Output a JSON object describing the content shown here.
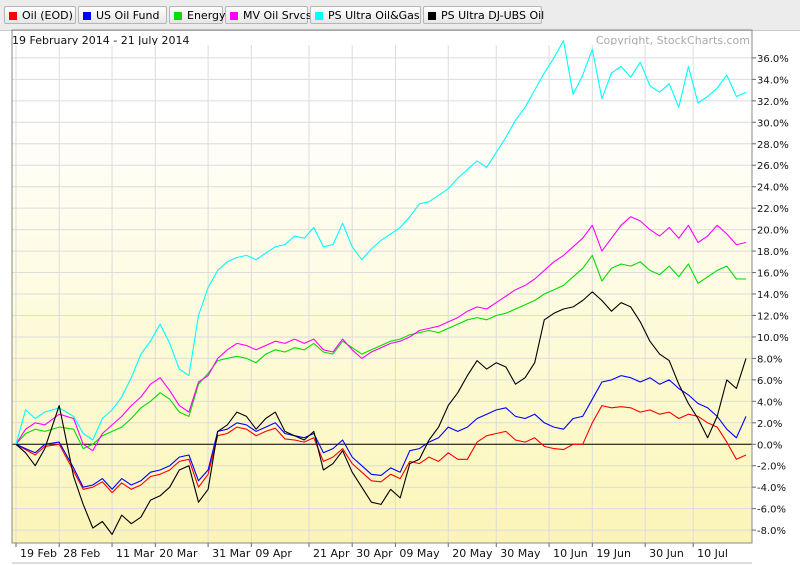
{
  "legend": [
    {
      "label": "Oil (EOD)",
      "color": "#ff0000"
    },
    {
      "label": "US Oil Fund",
      "color": "#0000ff"
    },
    {
      "label": "Energy",
      "color": "#00dd00"
    },
    {
      "label": "MV Oil Srvcs",
      "color": "#ff00ff"
    },
    {
      "label": "PS Ultra Oil&Gas",
      "color": "#00ffff"
    },
    {
      "label": "PS Ultra DJ-UBS Oil",
      "color": "#000000"
    }
  ],
  "header": {
    "date_range": "19 February 2014 - 21 July 2014",
    "copyright": "Copyright, StockCharts.com"
  },
  "chart_data": {
    "type": "line",
    "ylim": [
      -9.2,
      38.6
    ],
    "grid": true,
    "legend_position": "top",
    "y_ticks": [
      "-8.0%",
      "-6.0%",
      "-4.0%",
      "-2.0%",
      "0.0%",
      "2.0%",
      "4.0%",
      "6.0%",
      "8.0%",
      "10.0%",
      "12.0%",
      "14.0%",
      "16.0%",
      "18.0%",
      "20.0%",
      "22.0%",
      "24.0%",
      "26.0%",
      "28.0%",
      "30.0%",
      "32.0%",
      "34.0%",
      "36.0%"
    ],
    "y_tick_values": [
      -8,
      -6,
      -4,
      -2,
      0,
      2,
      4,
      6,
      8,
      10,
      12,
      14,
      16,
      18,
      20,
      22,
      24,
      26,
      28,
      30,
      32,
      34,
      36
    ],
    "x_ticks": [
      "19 Feb",
      "28 Feb",
      "11 Mar",
      "20 Mar",
      "31 Mar",
      "09 Apr",
      "21 Apr",
      "30 Apr",
      "09 May",
      "20 May",
      "30 May",
      "10 Jun",
      "19 Jun",
      "30 Jun",
      "10 Jul"
    ],
    "x_tick_days": [
      0,
      9,
      20,
      29,
      40,
      49,
      61,
      70,
      79,
      90,
      100,
      111,
      120,
      131,
      141
    ],
    "x_end_day": 152,
    "series": [
      {
        "name": "Oil (EOD)",
        "color": "#ff0000",
        "x": [
          0,
          2,
          4,
          6,
          9,
          12,
          14,
          16,
          18,
          20,
          22,
          24,
          26,
          28,
          30,
          32,
          34,
          36,
          38,
          40,
          42,
          44,
          46,
          48,
          50,
          52,
          54,
          56,
          58,
          60,
          62,
          64,
          66,
          68,
          70,
          72,
          74,
          76,
          78,
          80,
          82,
          84,
          86,
          88,
          90,
          92,
          94,
          96,
          98,
          100,
          102,
          104,
          106,
          108,
          110,
          112,
          114,
          116,
          118,
          120,
          122,
          124,
          126,
          128,
          130,
          132,
          134,
          136,
          138,
          140,
          142,
          144,
          146,
          148,
          150,
          152
        ],
        "y": [
          0,
          -0.5,
          -1,
          -0.2,
          0,
          -2.5,
          -4.2,
          -4,
          -3.5,
          -4.5,
          -3.6,
          -4.2,
          -3.8,
          -3,
          -2.8,
          -2.4,
          -1.6,
          -1.4,
          -4,
          -2.8,
          0.8,
          1,
          1.6,
          1.4,
          0.8,
          1.2,
          1.5,
          0.5,
          0.4,
          0.2,
          0.6,
          -1.6,
          -1.2,
          -0.4,
          -1.8,
          -2.6,
          -3.4,
          -3.5,
          -2.8,
          -3.2,
          -1.6,
          -1.8,
          -1.2,
          -1.6,
          -0.8,
          -1.4,
          -1.4,
          0.2,
          0.8,
          1,
          1.2,
          0.4,
          0.2,
          0.6,
          -0.2,
          -0.4,
          -0.5,
          0,
          0,
          2,
          3.6,
          3.4,
          3.5,
          3.4,
          3.0,
          3.2,
          2.8,
          3.0,
          2.4,
          2.8,
          2.6,
          2.0,
          1.6,
          0.2,
          -1.4,
          -1.0
        ],
        "values_note": "approximate percent change"
      },
      {
        "name": "US Oil Fund",
        "color": "#0000ff",
        "x": [
          0,
          2,
          4,
          6,
          9,
          12,
          14,
          16,
          18,
          20,
          22,
          24,
          26,
          28,
          30,
          32,
          34,
          36,
          38,
          40,
          42,
          44,
          46,
          48,
          50,
          52,
          54,
          56,
          58,
          60,
          62,
          64,
          66,
          68,
          70,
          72,
          74,
          76,
          78,
          80,
          82,
          84,
          86,
          88,
          90,
          92,
          94,
          96,
          98,
          100,
          102,
          104,
          106,
          108,
          110,
          112,
          114,
          116,
          118,
          120,
          122,
          124,
          126,
          128,
          130,
          132,
          134,
          136,
          138,
          140,
          142,
          144,
          146,
          148,
          150,
          152
        ],
        "y": [
          0,
          -0.4,
          -0.8,
          0,
          0.2,
          -2.2,
          -4,
          -3.8,
          -3.2,
          -4.2,
          -3.2,
          -3.8,
          -3.4,
          -2.6,
          -2.4,
          -2,
          -1.2,
          -1,
          -3.4,
          -2.4,
          1.2,
          1.4,
          2,
          1.8,
          1.2,
          1.6,
          2,
          1,
          0.8,
          0.6,
          1,
          -0.8,
          -0.4,
          0.4,
          -1.2,
          -2,
          -2.8,
          -2.9,
          -2.2,
          -2.6,
          -0.6,
          -0.4,
          0.2,
          0.6,
          1.6,
          1.2,
          1.6,
          2.4,
          2.8,
          3.2,
          3.4,
          2.6,
          2.4,
          2.8,
          2,
          1.6,
          1.4,
          2.4,
          2.6,
          4.2,
          5.8,
          6,
          6.4,
          6.2,
          5.8,
          6.2,
          5.6,
          6,
          5.2,
          4.6,
          3.8,
          3.4,
          2.6,
          1.4,
          0.6,
          2.6
        ],
        "values_note": "approximate percent change"
      },
      {
        "name": "Energy",
        "color": "#00dd00",
        "x": [
          0,
          2,
          4,
          6,
          9,
          12,
          14,
          16,
          18,
          20,
          22,
          24,
          26,
          28,
          30,
          32,
          34,
          36,
          38,
          40,
          42,
          44,
          46,
          48,
          50,
          52,
          54,
          56,
          58,
          60,
          62,
          64,
          66,
          68,
          70,
          72,
          74,
          76,
          78,
          80,
          82,
          84,
          86,
          88,
          90,
          92,
          94,
          96,
          98,
          100,
          102,
          104,
          106,
          108,
          110,
          112,
          114,
          116,
          118,
          120,
          122,
          124,
          126,
          128,
          130,
          132,
          134,
          136,
          138,
          140,
          142,
          144,
          146,
          148,
          150,
          152
        ],
        "y": [
          0,
          1,
          1.4,
          1.2,
          1.6,
          1.4,
          -0.4,
          0,
          0.8,
          1.2,
          1.6,
          2.4,
          3.4,
          4,
          4.8,
          4.2,
          3,
          2.6,
          5.6,
          6.6,
          7.8,
          8,
          8.2,
          8,
          7.6,
          8.4,
          8.8,
          8.6,
          9,
          8.8,
          9.4,
          8.6,
          8.4,
          9.6,
          9,
          8.4,
          8.8,
          9.2,
          9.6,
          9.8,
          10.2,
          10.4,
          10.6,
          10.4,
          10.8,
          11.2,
          11.6,
          11.8,
          11.6,
          12,
          12.2,
          12.6,
          13,
          13.4,
          14,
          14.4,
          14.8,
          15.6,
          16.4,
          17.6,
          15.2,
          16.4,
          16.8,
          16.6,
          17,
          16.2,
          15.8,
          16.6,
          15.6,
          16.8,
          15,
          15.6,
          16.2,
          16.6,
          15.4,
          15.4
        ],
        "values_note": "approximate percent change"
      },
      {
        "name": "MV Oil Srvcs",
        "color": "#ff00ff",
        "x": [
          0,
          2,
          4,
          6,
          9,
          12,
          14,
          16,
          18,
          20,
          22,
          24,
          26,
          28,
          30,
          32,
          34,
          36,
          38,
          40,
          42,
          44,
          46,
          48,
          50,
          52,
          54,
          56,
          58,
          60,
          62,
          64,
          66,
          68,
          70,
          72,
          74,
          76,
          78,
          80,
          82,
          84,
          86,
          88,
          90,
          92,
          94,
          96,
          98,
          100,
          102,
          104,
          106,
          108,
          110,
          112,
          114,
          116,
          118,
          120,
          122,
          124,
          126,
          128,
          130,
          132,
          134,
          136,
          138,
          140,
          142,
          144,
          146,
          148,
          150,
          152
        ],
        "y": [
          0,
          1.4,
          2,
          1.8,
          2.8,
          2.4,
          0,
          -0.6,
          1,
          1.8,
          2.6,
          3.6,
          4.4,
          5.6,
          6.2,
          5,
          3.6,
          3,
          5.8,
          6.4,
          8,
          8.8,
          9.4,
          9.2,
          8.8,
          9.2,
          9.6,
          9.4,
          9.8,
          9.4,
          9.8,
          8.8,
          8.6,
          9.8,
          8.8,
          8,
          8.6,
          9,
          9.4,
          9.6,
          10,
          10.6,
          10.8,
          11,
          11.4,
          11.8,
          12.4,
          12.8,
          12.6,
          13.2,
          13.8,
          14.4,
          14.8,
          15.4,
          16.2,
          17,
          17.6,
          18.4,
          19.2,
          20.4,
          18,
          19.2,
          20.4,
          21.2,
          20.8,
          20,
          19.4,
          20.2,
          19.2,
          20.4,
          18.8,
          19.4,
          20.4,
          19.6,
          18.6,
          18.8
        ],
        "values_note": "approximate percent change"
      },
      {
        "name": "PS Ultra Oil&Gas",
        "color": "#00ffff",
        "x": [
          0,
          2,
          4,
          6,
          9,
          12,
          14,
          16,
          18,
          20,
          22,
          24,
          26,
          28,
          30,
          32,
          34,
          36,
          38,
          40,
          42,
          44,
          46,
          48,
          50,
          52,
          54,
          56,
          58,
          60,
          62,
          64,
          66,
          68,
          70,
          72,
          74,
          76,
          78,
          80,
          82,
          84,
          86,
          88,
          90,
          92,
          94,
          96,
          98,
          100,
          102,
          104,
          106,
          108,
          110,
          112,
          114,
          116,
          118,
          120,
          122,
          124,
          126,
          128,
          130,
          132,
          134,
          136,
          138,
          140,
          142,
          144,
          146,
          148,
          150,
          152
        ],
        "y": [
          0,
          3.2,
          2.4,
          3,
          3.4,
          2.6,
          1,
          0.4,
          2.4,
          3.2,
          4.4,
          6.2,
          8.4,
          9.6,
          11.2,
          9.4,
          7,
          6.4,
          12,
          14.6,
          16.2,
          17,
          17.4,
          17.6,
          17.2,
          17.8,
          18.4,
          18.6,
          19.4,
          19.2,
          20.2,
          18.4,
          18.6,
          20.6,
          18.4,
          17.2,
          18.2,
          19,
          19.6,
          20.2,
          21.2,
          22.4,
          22.6,
          23.2,
          23.8,
          24.8,
          25.6,
          26.4,
          25.8,
          27.2,
          28.6,
          30.2,
          31.4,
          33,
          34.6,
          36,
          37.6,
          32.6,
          34.4,
          36.8,
          32.2,
          34.6,
          35.2,
          34.2,
          35.6,
          33.4,
          32.8,
          33.6,
          31.4,
          35.2,
          31.8,
          32.4,
          33.2,
          34.4,
          32.4,
          32.8
        ],
        "values_note": "approximate percent change"
      },
      {
        "name": "PS Ultra DJ-UBS Oil",
        "color": "#000000",
        "x": [
          0,
          2,
          4,
          6,
          9,
          12,
          14,
          16,
          18,
          20,
          22,
          24,
          26,
          28,
          30,
          32,
          34,
          36,
          38,
          40,
          42,
          44,
          46,
          48,
          50,
          52,
          54,
          56,
          58,
          60,
          62,
          64,
          66,
          68,
          70,
          72,
          74,
          76,
          78,
          80,
          82,
          84,
          86,
          88,
          90,
          92,
          94,
          96,
          98,
          100,
          102,
          104,
          106,
          108,
          110,
          112,
          114,
          116,
          118,
          120,
          122,
          124,
          126,
          128,
          130,
          132,
          134,
          136,
          138,
          140,
          142,
          144,
          146,
          148,
          150,
          152
        ],
        "y": [
          0,
          -0.8,
          -2,
          -0.4,
          3.6,
          -3,
          -5.6,
          -7.8,
          -7.2,
          -8.4,
          -6.6,
          -7.4,
          -6.8,
          -5.2,
          -4.8,
          -4,
          -2.4,
          -2,
          -5.4,
          -4.2,
          1.2,
          1.8,
          3,
          2.6,
          1.4,
          2.4,
          3,
          1.2,
          0.8,
          0.4,
          1.2,
          -2.4,
          -1.8,
          -0.6,
          -2.6,
          -4,
          -5.4,
          -5.6,
          -4.2,
          -5,
          -1.8,
          -1.4,
          0.4,
          1.6,
          3.6,
          4.8,
          6.4,
          7.8,
          7,
          7.6,
          7.2,
          5.6,
          6.2,
          7.6,
          11.6,
          12.2,
          12.6,
          12.8,
          13.4,
          14.2,
          13.4,
          12.4,
          13.2,
          12.8,
          11.4,
          9.6,
          8.4,
          7.8,
          5.6,
          3.8,
          2.4,
          0.6,
          2.6,
          6,
          5.2,
          8
        ],
        "values_note": "approximate percent change"
      }
    ]
  }
}
